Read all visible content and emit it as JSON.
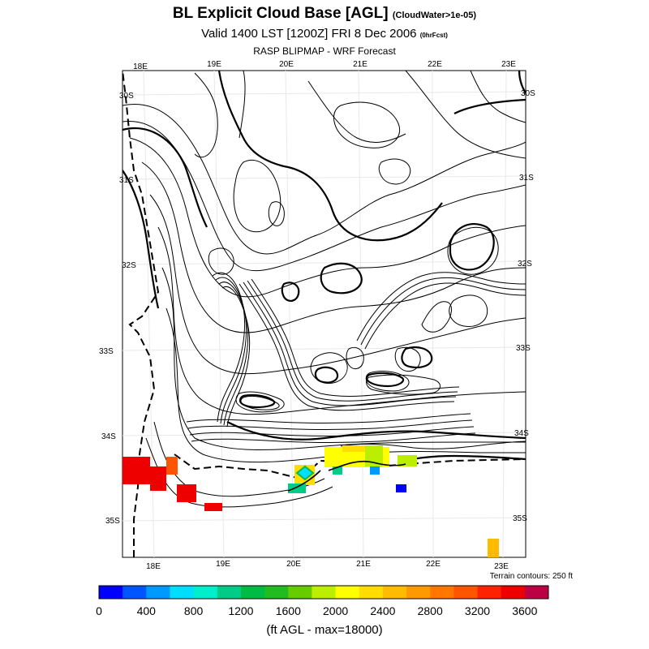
{
  "title": {
    "main": "BL Explicit Cloud Base [AGL]",
    "main_sub": "(CloudWater>1e-05)",
    "valid": "Valid 1400 LST [1200Z] FRI 8 Dec 2006",
    "valid_sub": "(0hrFcst)",
    "subtitle": "RASP BLIPMAP - WRF Forecast"
  },
  "axes": {
    "top_lon": [
      "18E",
      "19E",
      "20E",
      "21E",
      "22E",
      "23E"
    ],
    "bottom_lon": [
      "18E",
      "19E",
      "20E",
      "21E",
      "22E",
      "23E"
    ],
    "left_lat": [
      "30S",
      "31S",
      "32S",
      "33S",
      "34S",
      "35S"
    ],
    "right_lat": [
      "30S",
      "31S",
      "32S",
      "33S",
      "34S",
      "35S"
    ]
  },
  "terrain_note": "Terrain contours: 250 ft",
  "colorbar": {
    "colors": [
      "#0000ff",
      "#0055ff",
      "#0099ff",
      "#00ddff",
      "#00eecc",
      "#00cc88",
      "#00bb44",
      "#22bb22",
      "#66cc00",
      "#bbee00",
      "#ffff00",
      "#ffdd00",
      "#ffbb00",
      "#ff9900",
      "#ff7700",
      "#ff5500",
      "#ff2200",
      "#ee0000",
      "#bb0044"
    ],
    "tick_labels": [
      "0",
      "400",
      "800",
      "1200",
      "1600",
      "2000",
      "2400",
      "2800",
      "3200",
      "3600"
    ]
  },
  "units_label": "(ft AGL - max=18000)",
  "chart_data": {
    "type": "heatmap",
    "title": "BL Explicit Cloud Base [AGL]",
    "units": "ft AGL",
    "max": 18000,
    "scale_min": 0,
    "scale_max": 3800,
    "scale_step": 200,
    "lon_range": [
      "18E",
      "23E"
    ],
    "lat_range": [
      "30S",
      "35S"
    ]
  }
}
